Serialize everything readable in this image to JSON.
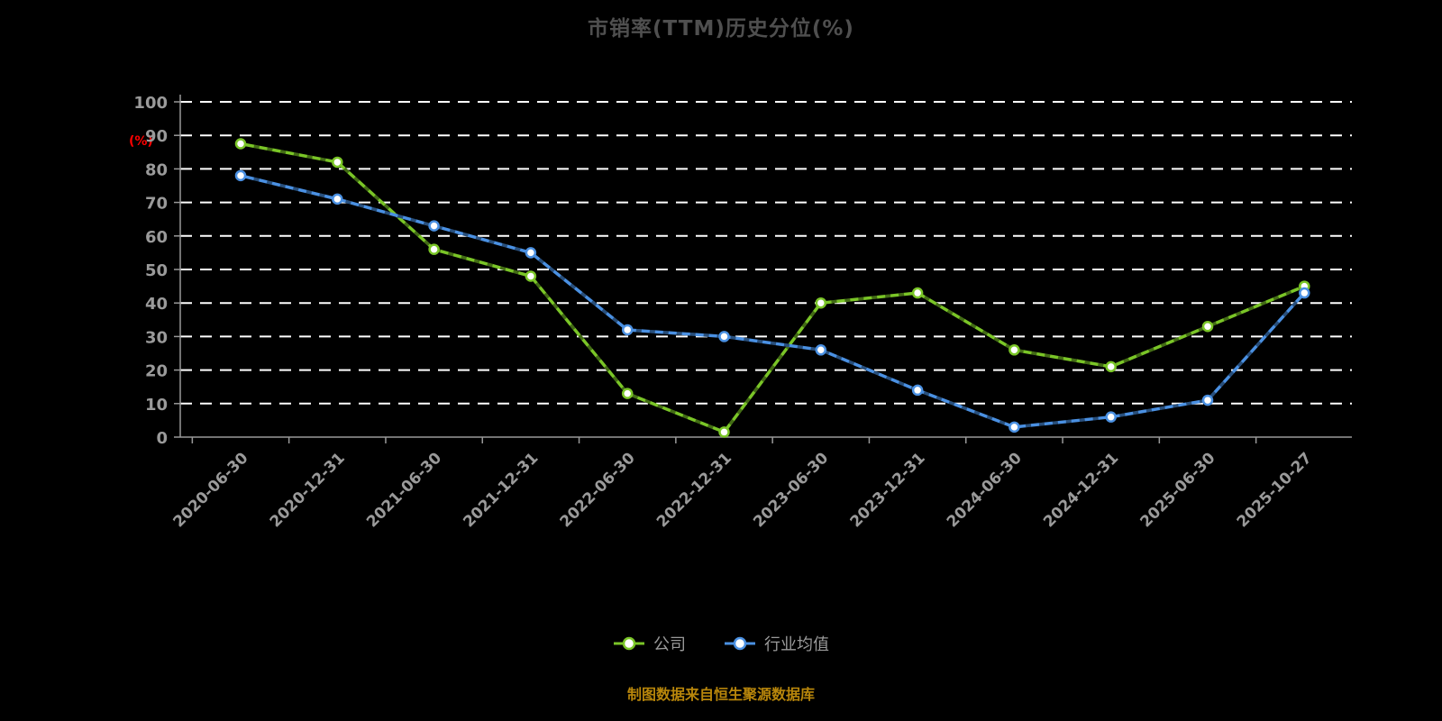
{
  "title": "市销率(TTM)历史分位(%)",
  "y_axis_unit": "(%)",
  "source_note": "制图数据来自恒生聚源数据库",
  "legend": {
    "items": [
      {
        "label": "公司",
        "color": "#7ac527"
      },
      {
        "label": "行业均值",
        "color": "#4a90e2"
      }
    ]
  },
  "colors": {
    "background": "#000000",
    "title": "#4f4f4f",
    "axis": "#999999",
    "tick_label": "#9a9a9a",
    "gridline": "#ffffff",
    "unit_label": "#ff0000",
    "source_note": "#b8860b"
  },
  "chart_data": {
    "type": "line",
    "title": "市销率(TTM)历史分位(%)",
    "categories": [
      "2020-06-30",
      "2020-12-31",
      "2021-06-30",
      "2021-12-31",
      "2022-06-30",
      "2022-12-31",
      "2023-06-30",
      "2023-12-31",
      "2024-06-30",
      "2024-12-31",
      "2025-06-30",
      "2025-10-27"
    ],
    "series": [
      {
        "name": "公司",
        "key": "company",
        "color": "#7ac527",
        "values": [
          87.5,
          82,
          56,
          48,
          13,
          1.5,
          40,
          43,
          26,
          21,
          33,
          45
        ]
      },
      {
        "name": "行业均值",
        "key": "industry",
        "color": "#4a90e2",
        "values": [
          78,
          71,
          63,
          55,
          32,
          30,
          26,
          14,
          3,
          6,
          11,
          43
        ]
      }
    ],
    "xlabel": "",
    "ylabel": "(%)",
    "ylim": [
      0,
      100
    ],
    "yticks": [
      0,
      10,
      20,
      30,
      40,
      50,
      60,
      70,
      80,
      90,
      100
    ],
    "grid": "horizontal-dashed",
    "legend_position": "bottom"
  }
}
